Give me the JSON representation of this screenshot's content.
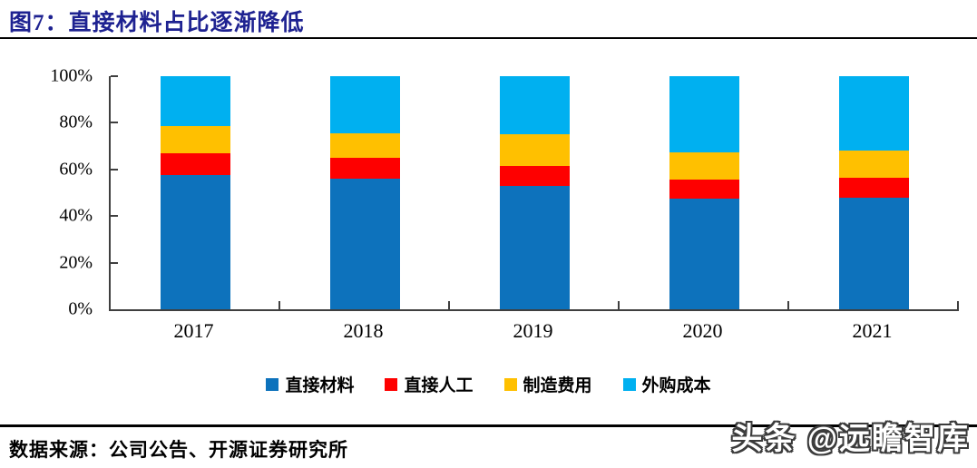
{
  "header": {
    "title": "图7：直接材料占比逐渐降低"
  },
  "chart_data": {
    "type": "bar",
    "stacked": true,
    "percent_stacked": true,
    "title": "直接材料占比逐渐降低",
    "categories": [
      "2017",
      "2018",
      "2019",
      "2020",
      "2021"
    ],
    "series": [
      {
        "name": "直接材料",
        "color": "#0d72bc",
        "values": [
          57.5,
          56.0,
          53.0,
          47.5,
          48.0
        ]
      },
      {
        "name": "直接人工",
        "color": "#fe0000",
        "values": [
          9.5,
          9.0,
          8.5,
          8.0,
          8.5
        ]
      },
      {
        "name": "制造费用",
        "color": "#ffc000",
        "values": [
          11.5,
          10.5,
          13.5,
          12.0,
          11.5
        ]
      },
      {
        "name": "外购成本",
        "color": "#00b0f0",
        "values": [
          21.5,
          24.5,
          25.0,
          32.5,
          32.0
        ]
      }
    ],
    "xlabel": "",
    "ylabel": "",
    "ylim": [
      0,
      100
    ],
    "yticks": [
      "0%",
      "20%",
      "40%",
      "60%",
      "80%",
      "100%"
    ],
    "grid": false,
    "legend_position": "bottom"
  },
  "footer": {
    "source": "数据来源：公司公告、开源证券研究所",
    "watermark": "头条 @远瞻智库"
  }
}
